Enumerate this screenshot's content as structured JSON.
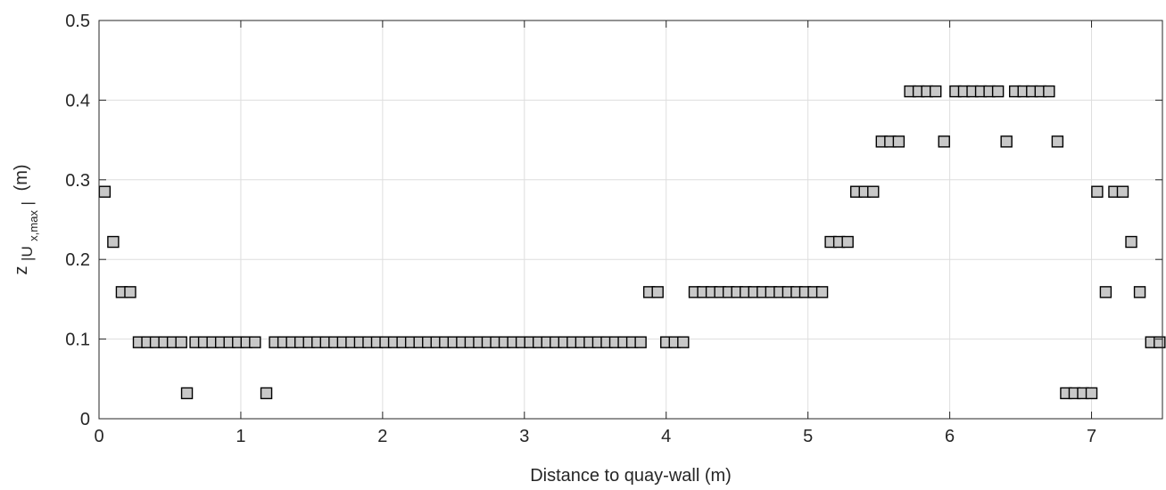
{
  "chart_data": {
    "type": "scatter",
    "xlabel": "Distance to quay-wall (m)",
    "ylabel": {
      "base": "z",
      "sub_open": "|U",
      "sub_subscript": "x,max",
      "sub_close": "|",
      "unit": "(m)"
    },
    "xlim": [
      0,
      7.5
    ],
    "ylim": [
      0,
      0.5
    ],
    "xticks": [
      0,
      1,
      2,
      3,
      4,
      5,
      6,
      7
    ],
    "xtick_labels": [
      "0",
      "1",
      "2",
      "3",
      "4",
      "5",
      "6",
      "7"
    ],
    "yticks": [
      0,
      0.1,
      0.2,
      0.3,
      0.4,
      0.5
    ],
    "ytick_labels": [
      "0",
      "0.1",
      "0.2",
      "0.3",
      "0.4",
      "0.5"
    ],
    "grid": true,
    "marker": "square",
    "colors": {
      "marker_fill": "#c8c8c8",
      "marker_edge": "#000000",
      "grid": "#dedede",
      "axes": "#262626"
    },
    "x": [
      0.04,
      0.1,
      0.16,
      0.22,
      0.28,
      0.34,
      0.4,
      0.46,
      0.52,
      0.58,
      0.62,
      0.68,
      0.74,
      0.8,
      0.86,
      0.92,
      0.98,
      1.04,
      1.1,
      1.18,
      1.24,
      1.3,
      1.36,
      1.42,
      1.48,
      1.54,
      1.6,
      1.66,
      1.72,
      1.78,
      1.84,
      1.9,
      1.96,
      2.02,
      2.08,
      2.14,
      2.2,
      2.26,
      2.32,
      2.38,
      2.44,
      2.5,
      2.56,
      2.62,
      2.68,
      2.74,
      2.8,
      2.86,
      2.92,
      2.98,
      3.04,
      3.1,
      3.16,
      3.22,
      3.28,
      3.34,
      3.4,
      3.46,
      3.52,
      3.58,
      3.64,
      3.7,
      3.76,
      3.82,
      3.88,
      3.94,
      4.0,
      4.06,
      4.12,
      4.2,
      4.26,
      4.32,
      4.38,
      4.44,
      4.5,
      4.56,
      4.62,
      4.68,
      4.74,
      4.8,
      4.86,
      4.92,
      4.98,
      5.04,
      5.1,
      5.16,
      5.22,
      5.28,
      5.34,
      5.4,
      5.46,
      5.52,
      5.58,
      5.64,
      5.72,
      5.78,
      5.84,
      5.9,
      5.96,
      6.04,
      6.1,
      6.16,
      6.22,
      6.28,
      6.34,
      6.4,
      6.46,
      6.52,
      6.58,
      6.64,
      6.7,
      6.76,
      6.82,
      6.88,
      6.94,
      7.0,
      7.04,
      7.1,
      7.16,
      7.22,
      7.28,
      7.34,
      7.42,
      7.48
    ],
    "y": [
      0.285,
      0.222,
      0.159,
      0.159,
      0.096,
      0.096,
      0.096,
      0.096,
      0.096,
      0.096,
      0.032,
      0.096,
      0.096,
      0.096,
      0.096,
      0.096,
      0.096,
      0.096,
      0.096,
      0.032,
      0.096,
      0.096,
      0.096,
      0.096,
      0.096,
      0.096,
      0.096,
      0.096,
      0.096,
      0.096,
      0.096,
      0.096,
      0.096,
      0.096,
      0.096,
      0.096,
      0.096,
      0.096,
      0.096,
      0.096,
      0.096,
      0.096,
      0.096,
      0.096,
      0.096,
      0.096,
      0.096,
      0.096,
      0.096,
      0.096,
      0.096,
      0.096,
      0.096,
      0.096,
      0.096,
      0.096,
      0.096,
      0.096,
      0.096,
      0.096,
      0.096,
      0.096,
      0.096,
      0.096,
      0.159,
      0.159,
      0.096,
      0.096,
      0.096,
      0.159,
      0.159,
      0.159,
      0.159,
      0.159,
      0.159,
      0.159,
      0.159,
      0.159,
      0.159,
      0.159,
      0.159,
      0.159,
      0.159,
      0.159,
      0.159,
      0.222,
      0.222,
      0.222,
      0.285,
      0.285,
      0.285,
      0.348,
      0.348,
      0.348,
      0.411,
      0.411,
      0.411,
      0.411,
      0.348,
      0.411,
      0.411,
      0.411,
      0.411,
      0.411,
      0.411,
      0.348,
      0.411,
      0.411,
      0.411,
      0.411,
      0.411,
      0.348,
      0.032,
      0.032,
      0.032,
      0.032,
      0.285,
      0.159,
      0.285,
      0.285,
      0.222,
      0.159,
      0.096,
      0.096
    ]
  }
}
